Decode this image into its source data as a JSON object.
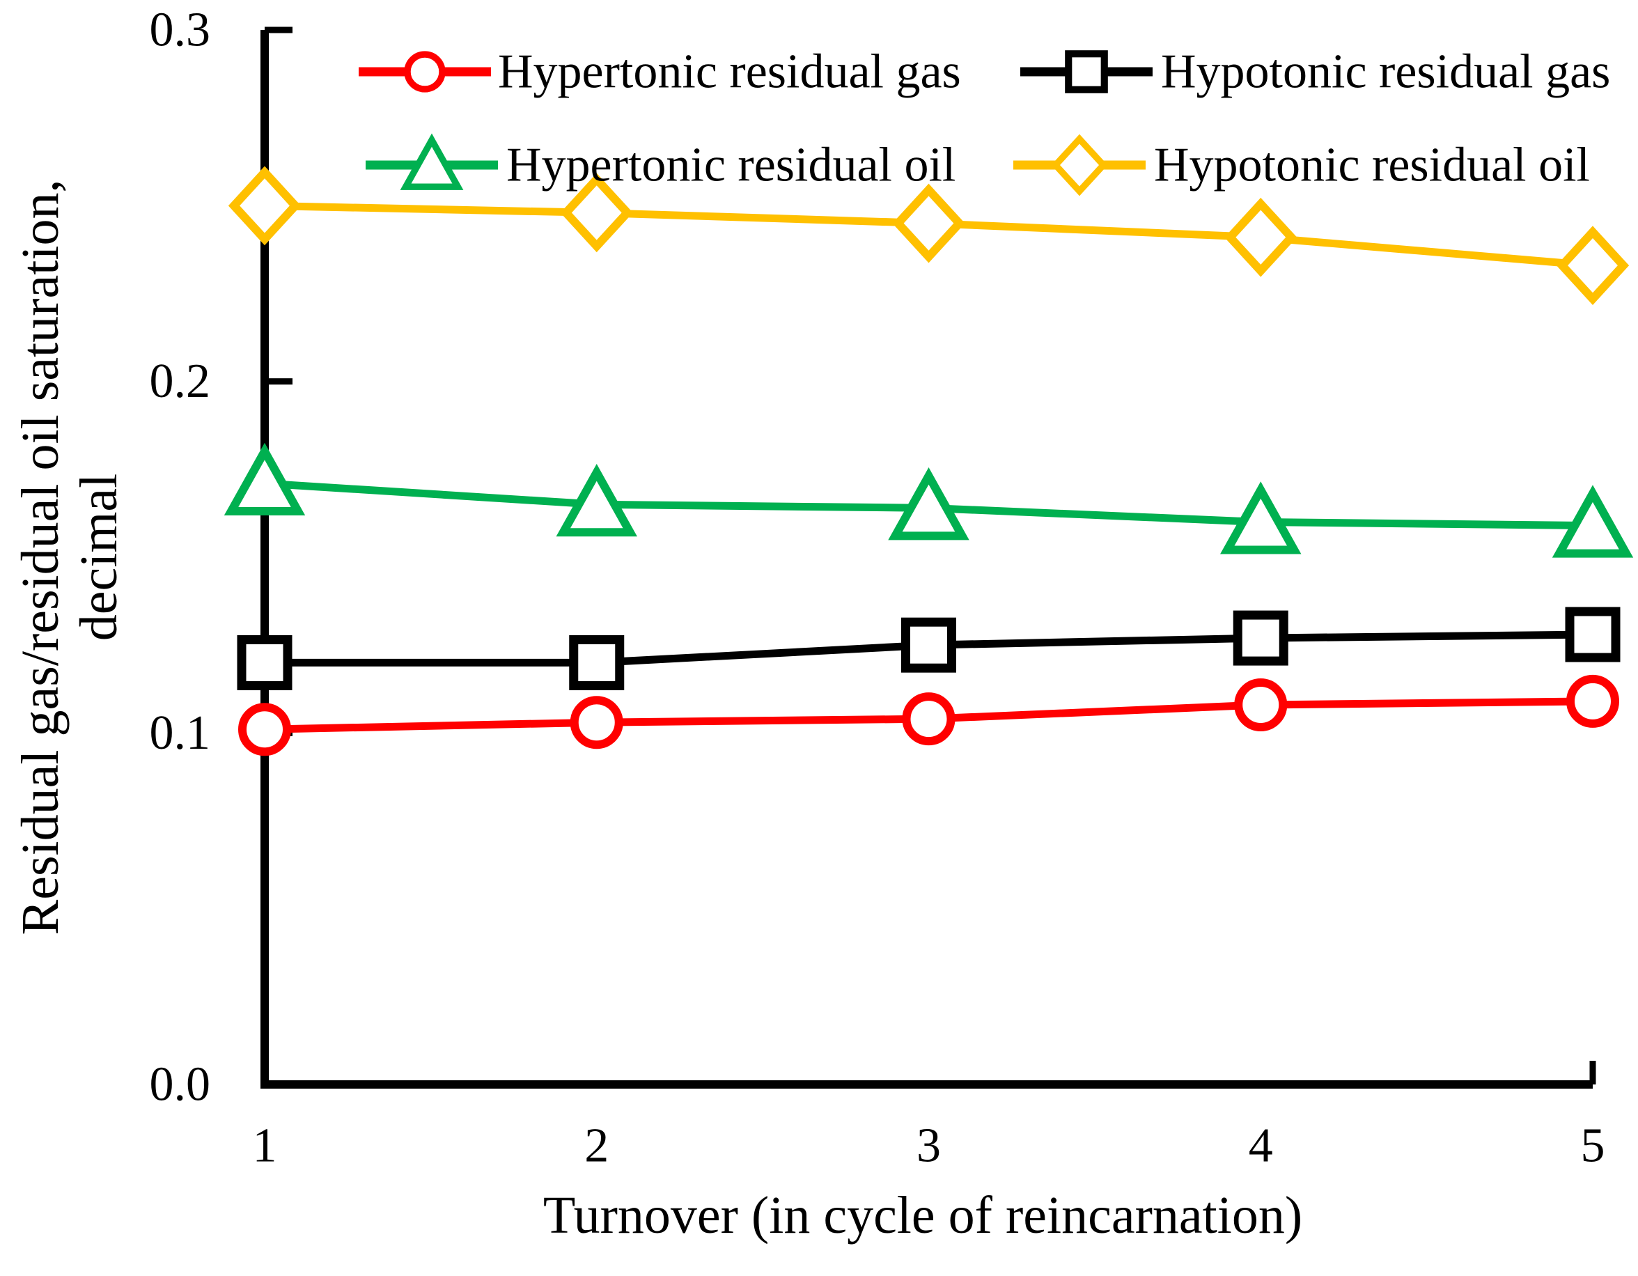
{
  "chart_data": {
    "type": "line",
    "title": "",
    "xlabel": "Turnover (in cycle of reincarnation)",
    "ylabel_line1": "Residual gas/residual oil saturation,",
    "ylabel_line2": "decimal",
    "x": [
      1,
      2,
      3,
      4,
      5
    ],
    "x_tick_labels": [
      "1",
      "2",
      "3",
      "4",
      "5"
    ],
    "y_ticks": [
      0.0,
      0.1,
      0.2,
      0.3
    ],
    "y_tick_labels": [
      "0.0",
      "0.1",
      "0.2",
      "0.3"
    ],
    "ylim": [
      0.0,
      0.3
    ],
    "grid": false,
    "legend_position": "top-inside",
    "axis_color": "#000000",
    "background_color": "#ffffff",
    "series": [
      {
        "name": "Hypertonic residual gas",
        "marker": "circle",
        "color": "#FF0000",
        "values": [
          0.101,
          0.103,
          0.104,
          0.108,
          0.109
        ]
      },
      {
        "name": "Hypotonic residual gas",
        "marker": "square",
        "color": "#000000",
        "values": [
          0.12,
          0.12,
          0.125,
          0.127,
          0.128
        ]
      },
      {
        "name": "Hypertonic residual oil",
        "marker": "triangle",
        "color": "#00B050",
        "values": [
          0.171,
          0.165,
          0.164,
          0.16,
          0.159
        ]
      },
      {
        "name": "Hypotonic residual oil",
        "marker": "diamond",
        "color": "#FFC000",
        "values": [
          0.25,
          0.248,
          0.245,
          0.241,
          0.233
        ]
      }
    ]
  }
}
